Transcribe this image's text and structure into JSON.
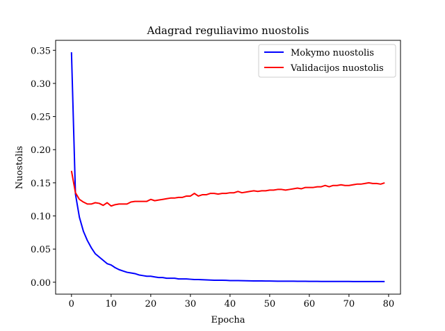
{
  "chart_data": {
    "type": "line",
    "title": "Adagrad reguliavimo nuostolis",
    "xlabel": "Epocha",
    "ylabel": "Nuostolis",
    "xlim": [
      -4,
      83
    ],
    "ylim": [
      -0.018,
      0.365
    ],
    "xticks": [
      0,
      10,
      20,
      30,
      40,
      50,
      60,
      70,
      80
    ],
    "yticks": [
      0.0,
      0.05,
      0.1,
      0.15,
      0.2,
      0.25,
      0.3,
      0.35
    ],
    "ytick_labels": [
      "0.00",
      "0.05",
      "0.10",
      "0.15",
      "0.20",
      "0.25",
      "0.30",
      "0.35"
    ],
    "xtick_labels": [
      "0",
      "10",
      "20",
      "30",
      "40",
      "50",
      "60",
      "70",
      "80"
    ],
    "grid": false,
    "legend_position": "top-right",
    "series": [
      {
        "name": "Mokymo nuostolis",
        "color": "#0000ff",
        "x": [
          0,
          1,
          2,
          3,
          4,
          5,
          6,
          7,
          8,
          9,
          10,
          11,
          12,
          13,
          14,
          15,
          16,
          17,
          18,
          19,
          20,
          21,
          22,
          23,
          24,
          25,
          26,
          27,
          28,
          29,
          30,
          31,
          32,
          33,
          34,
          35,
          36,
          37,
          38,
          39,
          40,
          41,
          42,
          43,
          44,
          45,
          46,
          47,
          48,
          49,
          50,
          51,
          52,
          53,
          54,
          55,
          56,
          57,
          58,
          59,
          60,
          61,
          62,
          63,
          64,
          65,
          66,
          67,
          68,
          69,
          70,
          71,
          72,
          73,
          74,
          75,
          76,
          77,
          78,
          79
        ],
        "values": [
          0.347,
          0.133,
          0.098,
          0.077,
          0.063,
          0.052,
          0.043,
          0.038,
          0.033,
          0.028,
          0.026,
          0.022,
          0.019,
          0.017,
          0.015,
          0.014,
          0.013,
          0.011,
          0.01,
          0.009,
          0.009,
          0.008,
          0.007,
          0.007,
          0.006,
          0.006,
          0.006,
          0.005,
          0.005,
          0.005,
          0.0045,
          0.004,
          0.004,
          0.0038,
          0.0035,
          0.0033,
          0.003,
          0.003,
          0.003,
          0.0028,
          0.0025,
          0.0025,
          0.0024,
          0.0023,
          0.0022,
          0.0021,
          0.002,
          0.002,
          0.0019,
          0.0018,
          0.0018,
          0.0017,
          0.0016,
          0.0016,
          0.0015,
          0.0015,
          0.0015,
          0.0014,
          0.0014,
          0.0014,
          0.0013,
          0.0013,
          0.0013,
          0.0012,
          0.0012,
          0.0012,
          0.0012,
          0.0011,
          0.0011,
          0.0011,
          0.0011,
          0.001,
          0.001,
          0.001,
          0.001,
          0.001,
          0.001,
          0.001,
          0.001,
          0.001
        ]
      },
      {
        "name": "Validacijos nuostolis",
        "color": "#ff0000",
        "x": [
          0,
          1,
          2,
          3,
          4,
          5,
          6,
          7,
          8,
          9,
          10,
          11,
          12,
          13,
          14,
          15,
          16,
          17,
          18,
          19,
          20,
          21,
          22,
          23,
          24,
          25,
          26,
          27,
          28,
          29,
          30,
          31,
          32,
          33,
          34,
          35,
          36,
          37,
          38,
          39,
          40,
          41,
          42,
          43,
          44,
          45,
          46,
          47,
          48,
          49,
          50,
          51,
          52,
          53,
          54,
          55,
          56,
          57,
          58,
          59,
          60,
          61,
          62,
          63,
          64,
          65,
          66,
          67,
          68,
          69,
          70,
          71,
          72,
          73,
          74,
          75,
          76,
          77,
          78,
          79
        ],
        "values": [
          0.168,
          0.135,
          0.125,
          0.121,
          0.118,
          0.118,
          0.12,
          0.119,
          0.116,
          0.12,
          0.115,
          0.117,
          0.118,
          0.118,
          0.118,
          0.121,
          0.122,
          0.122,
          0.122,
          0.122,
          0.125,
          0.123,
          0.124,
          0.125,
          0.126,
          0.127,
          0.127,
          0.128,
          0.128,
          0.13,
          0.13,
          0.134,
          0.13,
          0.132,
          0.132,
          0.134,
          0.134,
          0.133,
          0.134,
          0.134,
          0.135,
          0.135,
          0.137,
          0.135,
          0.136,
          0.137,
          0.138,
          0.137,
          0.138,
          0.138,
          0.139,
          0.139,
          0.14,
          0.14,
          0.139,
          0.14,
          0.141,
          0.142,
          0.141,
          0.143,
          0.143,
          0.143,
          0.144,
          0.144,
          0.146,
          0.144,
          0.146,
          0.146,
          0.147,
          0.146,
          0.146,
          0.147,
          0.148,
          0.148,
          0.149,
          0.15,
          0.149,
          0.149,
          0.148,
          0.15
        ]
      }
    ]
  }
}
